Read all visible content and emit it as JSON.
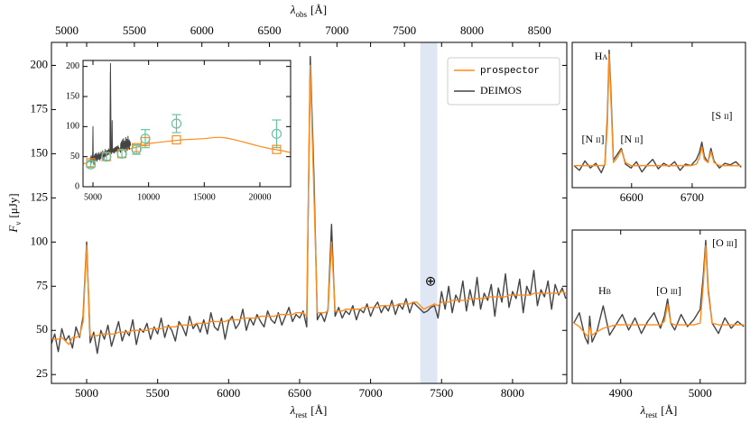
{
  "chart_data": [
    {
      "type": "line",
      "x": [
        4750,
        4775,
        4800,
        4825,
        4850,
        4875,
        4900,
        4925,
        4950,
        4975,
        5000,
        5025,
        5050,
        5075,
        5100,
        5125,
        5150,
        5175,
        5200,
        5225,
        5250,
        5275,
        5300,
        5325,
        5350,
        5375,
        5400,
        5425,
        5450,
        5475,
        5500,
        5525,
        5550,
        5575,
        5600,
        5625,
        5650,
        5675,
        5700,
        5725,
        5750,
        5775,
        5800,
        5825,
        5850,
        5875,
        5900,
        5925,
        5950,
        5975,
        6000,
        6025,
        6050,
        6075,
        6100,
        6125,
        6150,
        6175,
        6200,
        6225,
        6250,
        6275,
        6300,
        6325,
        6350,
        6375,
        6400,
        6425,
        6450,
        6475,
        6500,
        6525,
        6550,
        6575,
        6600,
        6625,
        6650,
        6675,
        6700,
        6725,
        6750,
        6775,
        6800,
        6825,
        6850,
        6875,
        6900,
        6925,
        6950,
        6975,
        7000,
        7025,
        7050,
        7075,
        7100,
        7125,
        7150,
        7175,
        7200,
        7225,
        7250,
        7275,
        7300,
        7325,
        7350,
        7375,
        7400,
        7425,
        7450,
        7475,
        7500,
        7525,
        7550,
        7575,
        7600,
        7625,
        7650,
        7675,
        7700,
        7725,
        7750,
        7775,
        7800,
        7825,
        7850,
        7875,
        7900,
        7925,
        7950,
        7975,
        8000,
        8025,
        8050,
        8075,
        8100,
        8125,
        8150,
        8175,
        8200,
        8225,
        8250,
        8275,
        8300,
        8325,
        8350,
        8375
      ],
      "series": [
        {
          "name": "prospector",
          "color": "#ff8c1a",
          "values": [
            45,
            45,
            45,
            46,
            44,
            42,
            46,
            46,
            47,
            55,
            98,
            47,
            47,
            47,
            48,
            48,
            48,
            48,
            48,
            49,
            49,
            49,
            49,
            50,
            50,
            50,
            50,
            50,
            51,
            51,
            51,
            51,
            52,
            52,
            52,
            52,
            53,
            53,
            53,
            53,
            53,
            54,
            54,
            54,
            54,
            55,
            55,
            55,
            55,
            55,
            56,
            56,
            56,
            56,
            57,
            57,
            57,
            57,
            57,
            58,
            58,
            58,
            58,
            58,
            59,
            59,
            59,
            59,
            59,
            60,
            60,
            60,
            58,
            200,
            130,
            60,
            60,
            60,
            61,
            100,
            61,
            61,
            61,
            62,
            62,
            62,
            62,
            62,
            63,
            63,
            63,
            63,
            63,
            64,
            64,
            64,
            64,
            64,
            65,
            65,
            65,
            65,
            66,
            66,
            64,
            62,
            63,
            64,
            65,
            64,
            66,
            66,
            66,
            67,
            67,
            67,
            67,
            67,
            68,
            68,
            68,
            68,
            68,
            69,
            69,
            69,
            69,
            69,
            69,
            70,
            70,
            70,
            70,
            70,
            70,
            70,
            71,
            71,
            71,
            71,
            71,
            71,
            71,
            71,
            72,
            71
          ]
        },
        {
          "name": "DEIMOS",
          "color": "#444444",
          "values": [
            42,
            48,
            38,
            51,
            44,
            47,
            40,
            52,
            46,
            58,
            100,
            43,
            49,
            37,
            50,
            45,
            53,
            41,
            48,
            55,
            44,
            50,
            47,
            56,
            42,
            51,
            49,
            54,
            45,
            52,
            48,
            57,
            46,
            53,
            50,
            44,
            55,
            52,
            47,
            58,
            51,
            54,
            49,
            56,
            48,
            60,
            52,
            50,
            57,
            45,
            55,
            58,
            51,
            54,
            62,
            50,
            57,
            53,
            59,
            55,
            52,
            61,
            56,
            54,
            60,
            53,
            58,
            63,
            55,
            59,
            57,
            61,
            52,
            205,
            140,
            56,
            60,
            55,
            62,
            110,
            58,
            63,
            57,
            61,
            59,
            64,
            56,
            62,
            60,
            65,
            58,
            63,
            66,
            60,
            64,
            61,
            67,
            59,
            65,
            62,
            68,
            60,
            66,
            64,
            62,
            60,
            61,
            63,
            64,
            57,
            72,
            62,
            75,
            60,
            70,
            66,
            78,
            61,
            73,
            64,
            80,
            62,
            71,
            67,
            76,
            58,
            74,
            66,
            82,
            63,
            72,
            68,
            79,
            60,
            75,
            70,
            84,
            64,
            73,
            69,
            78,
            62,
            76,
            70,
            74,
            68
          ]
        }
      ],
      "xlim": [
        4752,
        8382
      ],
      "xticks": [
        5000,
        5500,
        6000,
        6500,
        7000,
        7500,
        8000
      ],
      "x2lim": [
        4886,
        8702
      ],
      "x2ticks": [
        5000,
        5500,
        6000,
        6500,
        7000,
        7500,
        8000,
        8500
      ],
      "ylim": [
        20,
        213
      ],
      "yticks": [
        25,
        50,
        75,
        100,
        125,
        150,
        175,
        200
      ],
      "xlabel": {
        "symbol": "λ",
        "sub": "rest",
        "unit": "[Å]"
      },
      "x2label": {
        "symbol": "λ",
        "sub": "obs",
        "unit": "[Å]"
      },
      "ylabel": {
        "symbol": "F",
        "sub": "ν",
        "unit": "[μJy]"
      },
      "shade": {
        "xlim": [
          7350,
          7470
        ],
        "color": "#c9d5ec"
      },
      "annotations": [
        "⊕"
      ],
      "legend": "upper right"
    },
    {
      "type": "line",
      "series": [
        {
          "color": "#ff8c1a",
          "x": [
            4100,
            4500,
            4750,
            5000,
            5500,
            6000,
            6500,
            6563,
            6600,
            7000,
            7500,
            8000,
            9000,
            10000,
            11000,
            12000,
            13000,
            14000,
            15000,
            16000,
            16500,
            17000,
            18000,
            19000,
            20000,
            21000,
            22000,
            22700
          ],
          "values": [
            38,
            40,
            44,
            47,
            49,
            52,
            55,
            190,
            60,
            58,
            60,
            62,
            66,
            72,
            74,
            76,
            78,
            79,
            80,
            82,
            82,
            81,
            77,
            72,
            67,
            63,
            60,
            57
          ]
        }
      ],
      "photometry": {
        "color": "#66c2a5",
        "x": [
          4800,
          6200,
          7600,
          8900,
          9700,
          12500,
          21500
        ],
        "values": [
          37,
          50,
          55,
          62,
          80,
          105,
          88
        ],
        "errors": [
          5,
          6,
          6,
          8,
          15,
          15,
          23
        ]
      },
      "model_photometry": {
        "color": "#ff8c1a",
        "values": [
          40,
          50,
          55,
          65,
          75,
          78,
          62
        ]
      },
      "xlim": [
        4108,
        22760
      ],
      "xticks": [
        5000,
        10000,
        15000,
        20000
      ],
      "ylim": [
        0,
        210
      ],
      "yticks": [
        0,
        50,
        100,
        150,
        200
      ]
    },
    {
      "type": "line",
      "x": [
        6505,
        6514,
        6523,
        6532,
        6541,
        6550,
        6556,
        6560,
        6563,
        6566,
        6570,
        6576,
        6583,
        6590,
        6599,
        6608,
        6617,
        6626,
        6635,
        6644,
        6653,
        6662,
        6671,
        6680,
        6689,
        6698,
        6707,
        6712,
        6716,
        6720,
        6726,
        6731,
        6736,
        6745,
        6754,
        6763,
        6772,
        6781
      ],
      "series": [
        {
          "color": "#ff8c1a",
          "values": [
            58,
            58,
            58,
            58,
            58,
            58,
            59,
            110,
            200,
            140,
            62,
            68,
            78,
            62,
            58,
            58,
            58,
            58,
            58,
            58,
            58,
            58,
            58,
            58,
            58,
            58,
            60,
            68,
            82,
            66,
            62,
            76,
            62,
            58,
            58,
            58,
            58,
            58
          ]
        },
        {
          "color": "#444444",
          "values": [
            58,
            52,
            64,
            55,
            61,
            49,
            60,
            120,
            205,
            150,
            65,
            72,
            80,
            60,
            55,
            63,
            50,
            59,
            66,
            54,
            61,
            57,
            63,
            52,
            60,
            58,
            66,
            75,
            88,
            70,
            62,
            80,
            64,
            55,
            61,
            59,
            63,
            56
          ]
        }
      ],
      "xlim": [
        6502,
        6788
      ],
      "xticks": [
        6600,
        6700
      ],
      "ylim": [
        30,
        215
      ],
      "annotations": [
        "Hα",
        "[N ii]",
        "[N ii]",
        "[S ii]"
      ]
    },
    {
      "type": "line",
      "x": [
        4841,
        4848,
        4855,
        4859,
        4861,
        4864,
        4870,
        4878,
        4886,
        4894,
        4902,
        4910,
        4918,
        4926,
        4934,
        4942,
        4950,
        4955,
        4959,
        4963,
        4968,
        4976,
        4984,
        4992,
        5000,
        5004,
        5007,
        5010,
        5015,
        5023,
        5031,
        5039,
        5047,
        5055
      ],
      "series": [
        {
          "color": "#ff8c1a",
          "values": [
            52,
            50,
            46,
            44,
            50,
            45,
            47,
            49,
            50,
            51,
            51,
            51,
            51,
            51,
            51,
            51,
            51,
            53,
            63,
            52,
            51,
            51,
            51,
            51,
            52,
            75,
            97,
            70,
            52,
            51,
            51,
            51,
            51,
            51
          ]
        },
        {
          "color": "#444444",
          "values": [
            52,
            58,
            44,
            40,
            56,
            41,
            47,
            62,
            45,
            51,
            57,
            48,
            55,
            46,
            53,
            58,
            49,
            56,
            66,
            52,
            48,
            57,
            50,
            54,
            60,
            80,
            100,
            72,
            52,
            46,
            55,
            49,
            53,
            50
          ]
        }
      ],
      "xlim": [
        4839,
        5057
      ],
      "xticks": [
        4900,
        5000
      ],
      "ylim": [
        17,
        106
      ],
      "xlabel": {
        "symbol": "λ",
        "sub": "rest",
        "unit": "[Å]"
      },
      "annotations": [
        "Hβ",
        "[O iii]",
        "[O iii]"
      ]
    }
  ]
}
